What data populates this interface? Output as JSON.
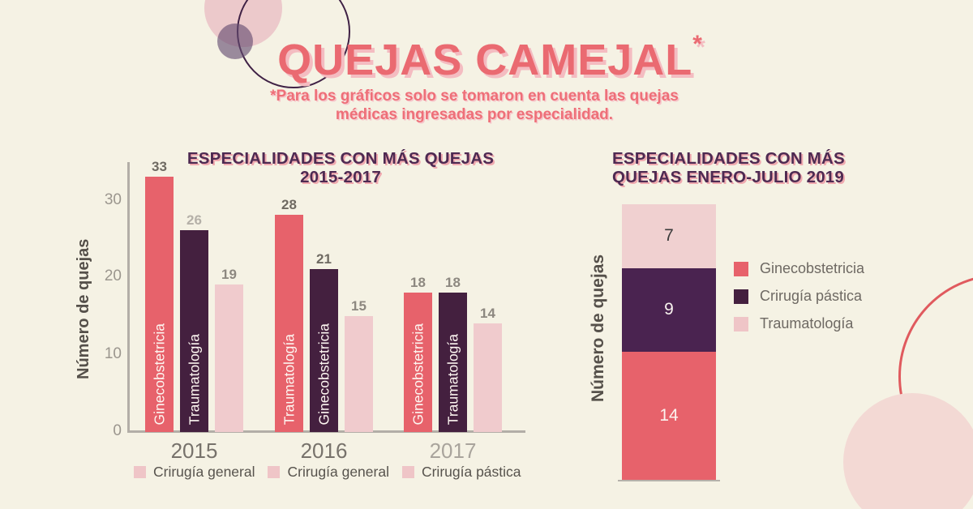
{
  "page": {
    "title": "QUEJAS CAMEJAL",
    "title_asterisk": "*",
    "subtitle_line1": "*Para los gráficos solo se tomaron en cuenta las quejas",
    "subtitle_line2": "médicas ingresadas por especialidad."
  },
  "colors": {
    "coral": "#e7626b",
    "purple": "#44203f",
    "purple_right": "#4a2350",
    "pink": "#f0cbcd",
    "pink_segment": "#f0d0d0",
    "pink_swatch": "#efc5c7",
    "num_dark": "#6f6a62",
    "num_mid": "#8d8880",
    "num_light": "#b5b0a8",
    "year_normal": "#77726b",
    "year_light": "#a9a49c"
  },
  "chart_data": [
    {
      "type": "bar",
      "title": "ESPECIALIDADES CON MÁS QUEJAS 2015-2017",
      "title_lines": [
        "ESPECIALIDADES CON MÁS QUEJAS",
        "2015-2017"
      ],
      "ylabel": "Número de quejas",
      "ylim": [
        0,
        35
      ],
      "yticks": [
        "0",
        "10",
        "20",
        "30"
      ],
      "grid": false,
      "categories": [
        "2015",
        "2016",
        "2017"
      ],
      "groups": [
        {
          "year": "2015",
          "year_shade": "normal",
          "bars": [
            {
              "label": "Ginecobstetricia",
              "value": 33,
              "color": "coral",
              "num_shade": "dark"
            },
            {
              "label": "Traumatología",
              "value": 26,
              "color": "purple",
              "num_shade": "light"
            },
            {
              "label": "",
              "value": 19,
              "color": "pink",
              "num_shade": "mid"
            }
          ]
        },
        {
          "year": "2016",
          "year_shade": "normal",
          "bars": [
            {
              "label": "Traumatología",
              "value": 28,
              "color": "coral",
              "num_shade": "dark"
            },
            {
              "label": "Ginecobstetricia",
              "value": 21,
              "color": "purple",
              "num_shade": "dark"
            },
            {
              "label": "",
              "value": 15,
              "color": "pink",
              "num_shade": "mid"
            }
          ]
        },
        {
          "year": "2017",
          "year_shade": "light",
          "bars": [
            {
              "label": "Ginecobstetricia",
              "value": 18,
              "color": "coral",
              "num_shade": "mid"
            },
            {
              "label": "Traumatología",
              "value": 18,
              "color": "purple",
              "num_shade": "mid"
            },
            {
              "label": "",
              "value": 14,
              "color": "pink",
              "num_shade": "mid"
            }
          ]
        }
      ],
      "legend": [
        {
          "label": "Crirugía general",
          "color": "pink_swatch"
        },
        {
          "label": "Crirugía general",
          "color": "pink_swatch"
        },
        {
          "label": "Crirugía pástica",
          "color": "pink_swatch"
        }
      ],
      "legend_position": "bottom"
    },
    {
      "type": "stacked-bar",
      "title": "ESPECIALIDADES CON MÁS QUEJAS ENERO-JULIO 2019",
      "title_lines": [
        "ESPECIALIDADES CON MÁS",
        "QUEJAS ENERO-JULIO 2019"
      ],
      "ylabel": "Número de quejas",
      "segments_top_to_bottom": [
        {
          "label": "Traumatología",
          "value": 7,
          "color": "pink_segment",
          "text_color": "#3b3b3b"
        },
        {
          "label": "Crirugía pástica",
          "value": 9,
          "color": "purple_right",
          "text_color": "#f8f2ee"
        },
        {
          "label": "Ginecobstetricia",
          "value": 14,
          "color": "coral",
          "text_color": "#fbf3ef"
        }
      ],
      "legend": [
        {
          "label": "Ginecobstetricia",
          "color": "coral"
        },
        {
          "label": "Crirugía pástica",
          "color": "purple"
        },
        {
          "label": "Traumatología",
          "color": "pink_swatch"
        }
      ],
      "legend_position": "right"
    }
  ]
}
